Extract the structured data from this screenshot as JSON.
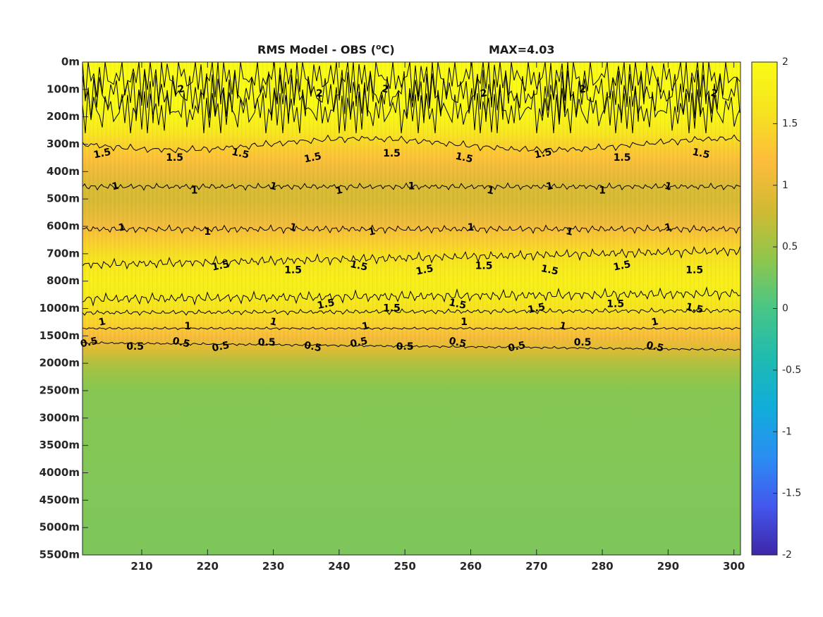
{
  "chart_data": {
    "type": "heatmap",
    "title": "RMS Model - OBS (",
    "title_unit_sup": "o",
    "title_unit": "C)",
    "max_label": "MAX=4.03",
    "xlabel": "",
    "ylabel": "",
    "xlim": [
      201,
      301
    ],
    "x_ticks": [
      210,
      220,
      230,
      240,
      250,
      260,
      270,
      280,
      290,
      300
    ],
    "y_tick_labels": [
      "0m",
      "100m",
      "200m",
      "300m",
      "400m",
      "500m",
      "600m",
      "700m",
      "800m",
      "1000m",
      "1500m",
      "2000m",
      "2500m",
      "3000m",
      "3500m",
      "4000m",
      "4500m",
      "5000m",
      "5500m"
    ],
    "colorbar": {
      "range": [
        -2,
        2
      ],
      "ticks": [
        "2",
        "1.5",
        "1",
        "0.5",
        "0",
        "-0.5",
        "-1",
        "-1.5",
        "-2"
      ],
      "colormap": "parula",
      "stops": [
        "#3e26a8",
        "#4358ee",
        "#2b8ef2",
        "#10adda",
        "#1fbbb0",
        "#48c687",
        "#8fc64c",
        "#d1ba32",
        "#fdbc3c",
        "#f6e31f",
        "#f9fb15"
      ]
    },
    "depth_profile": {
      "depth_index": [
        0,
        0.5,
        1,
        1.5,
        2,
        2.5,
        3,
        3.5,
        4,
        4.5,
        5,
        5.5,
        6,
        6.5,
        7,
        7.5,
        8,
        8.5,
        9,
        9.5,
        10,
        10.5,
        11,
        11.5,
        12,
        18
      ],
      "value": [
        1.95,
        2.1,
        2.15,
        2.05,
        1.9,
        1.7,
        1.45,
        1.25,
        1.05,
        0.9,
        0.85,
        0.95,
        1.1,
        1.35,
        1.55,
        1.7,
        1.8,
        1.75,
        1.6,
        1.45,
        1.15,
        0.9,
        0.6,
        0.45,
        0.35,
        0.3
      ]
    },
    "contours": [
      {
        "level": "2",
        "labels_at_x": [
          216,
          237,
          247,
          262,
          277,
          297
        ]
      },
      {
        "level": "1.5",
        "labels_at_x": [
          204,
          215,
          225,
          236,
          248,
          259,
          271,
          283,
          295
        ]
      },
      {
        "level": "1",
        "labels_at_x": [
          206,
          218,
          230,
          240,
          251,
          263,
          272,
          280,
          290
        ]
      },
      {
        "level": "1",
        "labels_at_x": [
          207,
          220,
          233,
          245,
          260,
          275,
          290
        ]
      },
      {
        "level": "1.5",
        "labels_at_x": [
          222,
          233,
          243,
          253,
          262,
          272,
          283,
          294
        ]
      },
      {
        "level": "1.5",
        "labels_at_x": [
          238,
          248,
          258,
          270,
          282,
          294
        ]
      },
      {
        "level": "1",
        "labels_at_x": [
          204,
          217,
          230,
          244,
          259,
          274,
          288
        ]
      },
      {
        "level": "0.5",
        "labels_at_x": [
          202,
          209,
          216,
          222,
          229,
          236,
          243,
          250,
          258,
          267,
          277,
          288
        ]
      }
    ]
  }
}
